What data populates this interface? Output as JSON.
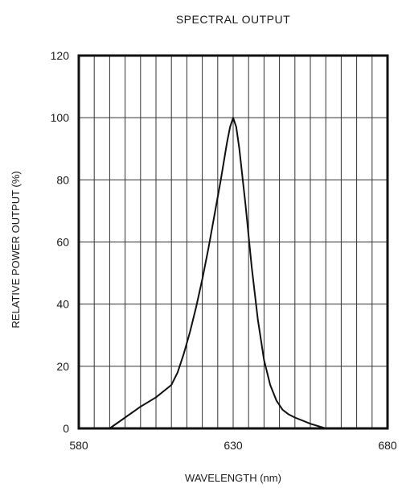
{
  "chart_data": {
    "type": "line",
    "title": "SPECTRAL OUTPUT",
    "xlabel": "WAVELENGTH (nm)",
    "ylabel": "RELATIVE POWER OUTPUT (%)",
    "xlim": [
      580,
      680
    ],
    "ylim": [
      0,
      120
    ],
    "x_ticks": [
      {
        "value": 580,
        "label": "580"
      },
      {
        "value": 630,
        "label": "630"
      },
      {
        "value": 680,
        "label": "680"
      }
    ],
    "y_ticks": [
      {
        "value": 0,
        "label": "0"
      },
      {
        "value": 20,
        "label": "20"
      },
      {
        "value": 40,
        "label": "40"
      },
      {
        "value": 60,
        "label": "60"
      },
      {
        "value": 80,
        "label": "80"
      },
      {
        "value": 100,
        "label": "100"
      },
      {
        "value": 120,
        "label": "120"
      }
    ],
    "grid": true,
    "x_grid_step": 5,
    "y_grid_step": 20,
    "series": [
      {
        "x": [
          590,
          595,
          600,
          605,
          610,
          612,
          614,
          616,
          618,
          620,
          622,
          624,
          626,
          628,
          629,
          630,
          631,
          632,
          634,
          636,
          638,
          640,
          642,
          644,
          646,
          648,
          650,
          655,
          660
        ],
        "y": [
          0,
          3.5,
          7,
          10,
          14,
          18,
          24,
          31,
          39,
          48,
          58,
          69,
          80,
          92,
          97,
          100,
          97,
          90,
          72,
          52,
          35,
          22,
          14,
          9,
          6,
          4.5,
          3.5,
          1.5,
          0
        ]
      }
    ],
    "colors": {
      "line": "#111111",
      "frame": "#111111",
      "grid": "#333333"
    }
  }
}
